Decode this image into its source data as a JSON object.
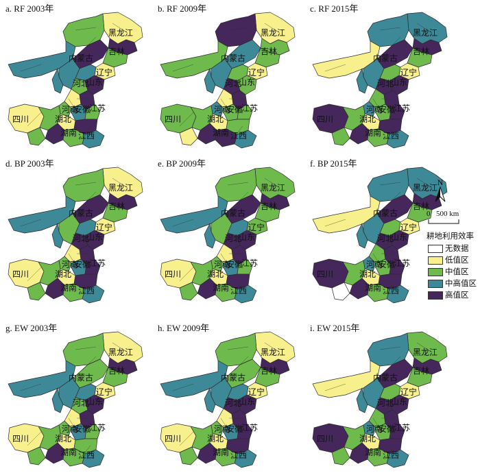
{
  "panels": [
    {
      "title": "a. RF 2003年",
      "regions": [
        "low",
        "high",
        "mid",
        "midhigh",
        "high",
        "mid",
        "low",
        "midhigh",
        "mid",
        "midhigh",
        "high",
        "low",
        "mid",
        "high",
        "midhigh",
        "mid",
        "low",
        "high",
        "mid",
        "midhigh",
        "low",
        "mid",
        "high",
        "midhigh",
        "mid"
      ]
    },
    {
      "title": "b. RF 2009年",
      "regions": [
        "low",
        "mid",
        "high",
        "mid",
        "midhigh",
        "mid",
        "low",
        "mid",
        "high",
        "midhigh",
        "mid",
        "low",
        "midhigh",
        "high",
        "mid",
        "mid",
        "low",
        "mid",
        "high",
        "midhigh",
        "mid",
        "mid",
        "high",
        "midhigh",
        "low"
      ]
    },
    {
      "title": "c. RF 2015年",
      "regions": [
        "midhigh",
        "high",
        "midhigh",
        "low",
        "high",
        "mid",
        "low",
        "mid",
        "high",
        "midhigh",
        "high",
        "mid",
        "midhigh",
        "high",
        "mid",
        "high",
        "low",
        "high",
        "mid",
        "midhigh",
        "high",
        "mid",
        "high",
        "midhigh",
        "mid"
      ]
    },
    {
      "title": "d. BP 2003年",
      "regions": [
        "low",
        "high",
        "mid",
        "midhigh",
        "high",
        "mid",
        "low",
        "midhigh",
        "high",
        "mid",
        "high",
        "low",
        "mid",
        "high",
        "midhigh",
        "high",
        "low",
        "high",
        "mid",
        "midhigh",
        "low",
        "mid",
        "high",
        "midhigh",
        "mid"
      ]
    },
    {
      "title": "e. BP 2009年",
      "regions": [
        "mid",
        "high",
        "mid",
        "midhigh",
        "high",
        "mid",
        "mid",
        "midhigh",
        "high",
        "mid",
        "high",
        "low",
        "mid",
        "high",
        "midhigh",
        "mid",
        "low",
        "high",
        "mid",
        "midhigh",
        "low",
        "mid",
        "high",
        "midhigh",
        "mid"
      ]
    },
    {
      "title": "f. BP 2015年",
      "regions": [
        "midhigh",
        "high",
        "midhigh",
        "low",
        "high",
        "mid",
        "low",
        "mid",
        "high",
        "midhigh",
        "high",
        "mid",
        "midhigh",
        "high",
        "mid",
        "high",
        "low",
        "high",
        "mid",
        "midhigh",
        "high",
        "mid",
        "high",
        "midhigh",
        "none"
      ]
    },
    {
      "title": "g. EW 2003年",
      "regions": [
        "low",
        "high",
        "mid",
        "midhigh",
        "mid",
        "mid",
        "low",
        "midhigh",
        "mid",
        "midhigh",
        "high",
        "low",
        "mid",
        "high",
        "midhigh",
        "mid",
        "low",
        "mid",
        "mid",
        "midhigh",
        "low",
        "mid",
        "high",
        "midhigh",
        "mid"
      ]
    },
    {
      "title": "h. EW 2009年",
      "regions": [
        "low",
        "high",
        "mid",
        "midhigh",
        "mid",
        "mid",
        "low",
        "midhigh",
        "high",
        "midhigh",
        "high",
        "low",
        "mid",
        "high",
        "midhigh",
        "high",
        "low",
        "high",
        "mid",
        "midhigh",
        "low",
        "mid",
        "high",
        "midhigh",
        "mid"
      ]
    },
    {
      "title": "i. EW 2015年",
      "regions": [
        "mid",
        "high",
        "midhigh",
        "low",
        "high",
        "mid",
        "low",
        "mid",
        "high",
        "midhigh",
        "high",
        "mid",
        "midhigh",
        "high",
        "mid",
        "high",
        "low",
        "high",
        "mid",
        "midhigh",
        "high",
        "mid",
        "high",
        "midhigh",
        "mid"
      ]
    }
  ],
  "province_labels": [
    "黑龙江",
    "内蒙古",
    "吉林",
    "辽宁",
    "河北",
    "山东",
    "河南",
    "安徽",
    "湖北",
    "江苏",
    "四川",
    "湖南",
    "江西"
  ],
  "legend": {
    "north": "N",
    "scale_min": "0",
    "scale_max": "500 km",
    "title": "耕地利用效率",
    "items": [
      {
        "key": "none",
        "label": "无数据",
        "color": "#ffffff"
      },
      {
        "key": "low",
        "label": "低值区",
        "color": "#f7f08d"
      },
      {
        "key": "mid",
        "label": "中值区",
        "color": "#6fba4c"
      },
      {
        "key": "midhigh",
        "label": "中高值区",
        "color": "#3e8997"
      },
      {
        "key": "high",
        "label": "高值区",
        "color": "#45275c"
      }
    ]
  }
}
